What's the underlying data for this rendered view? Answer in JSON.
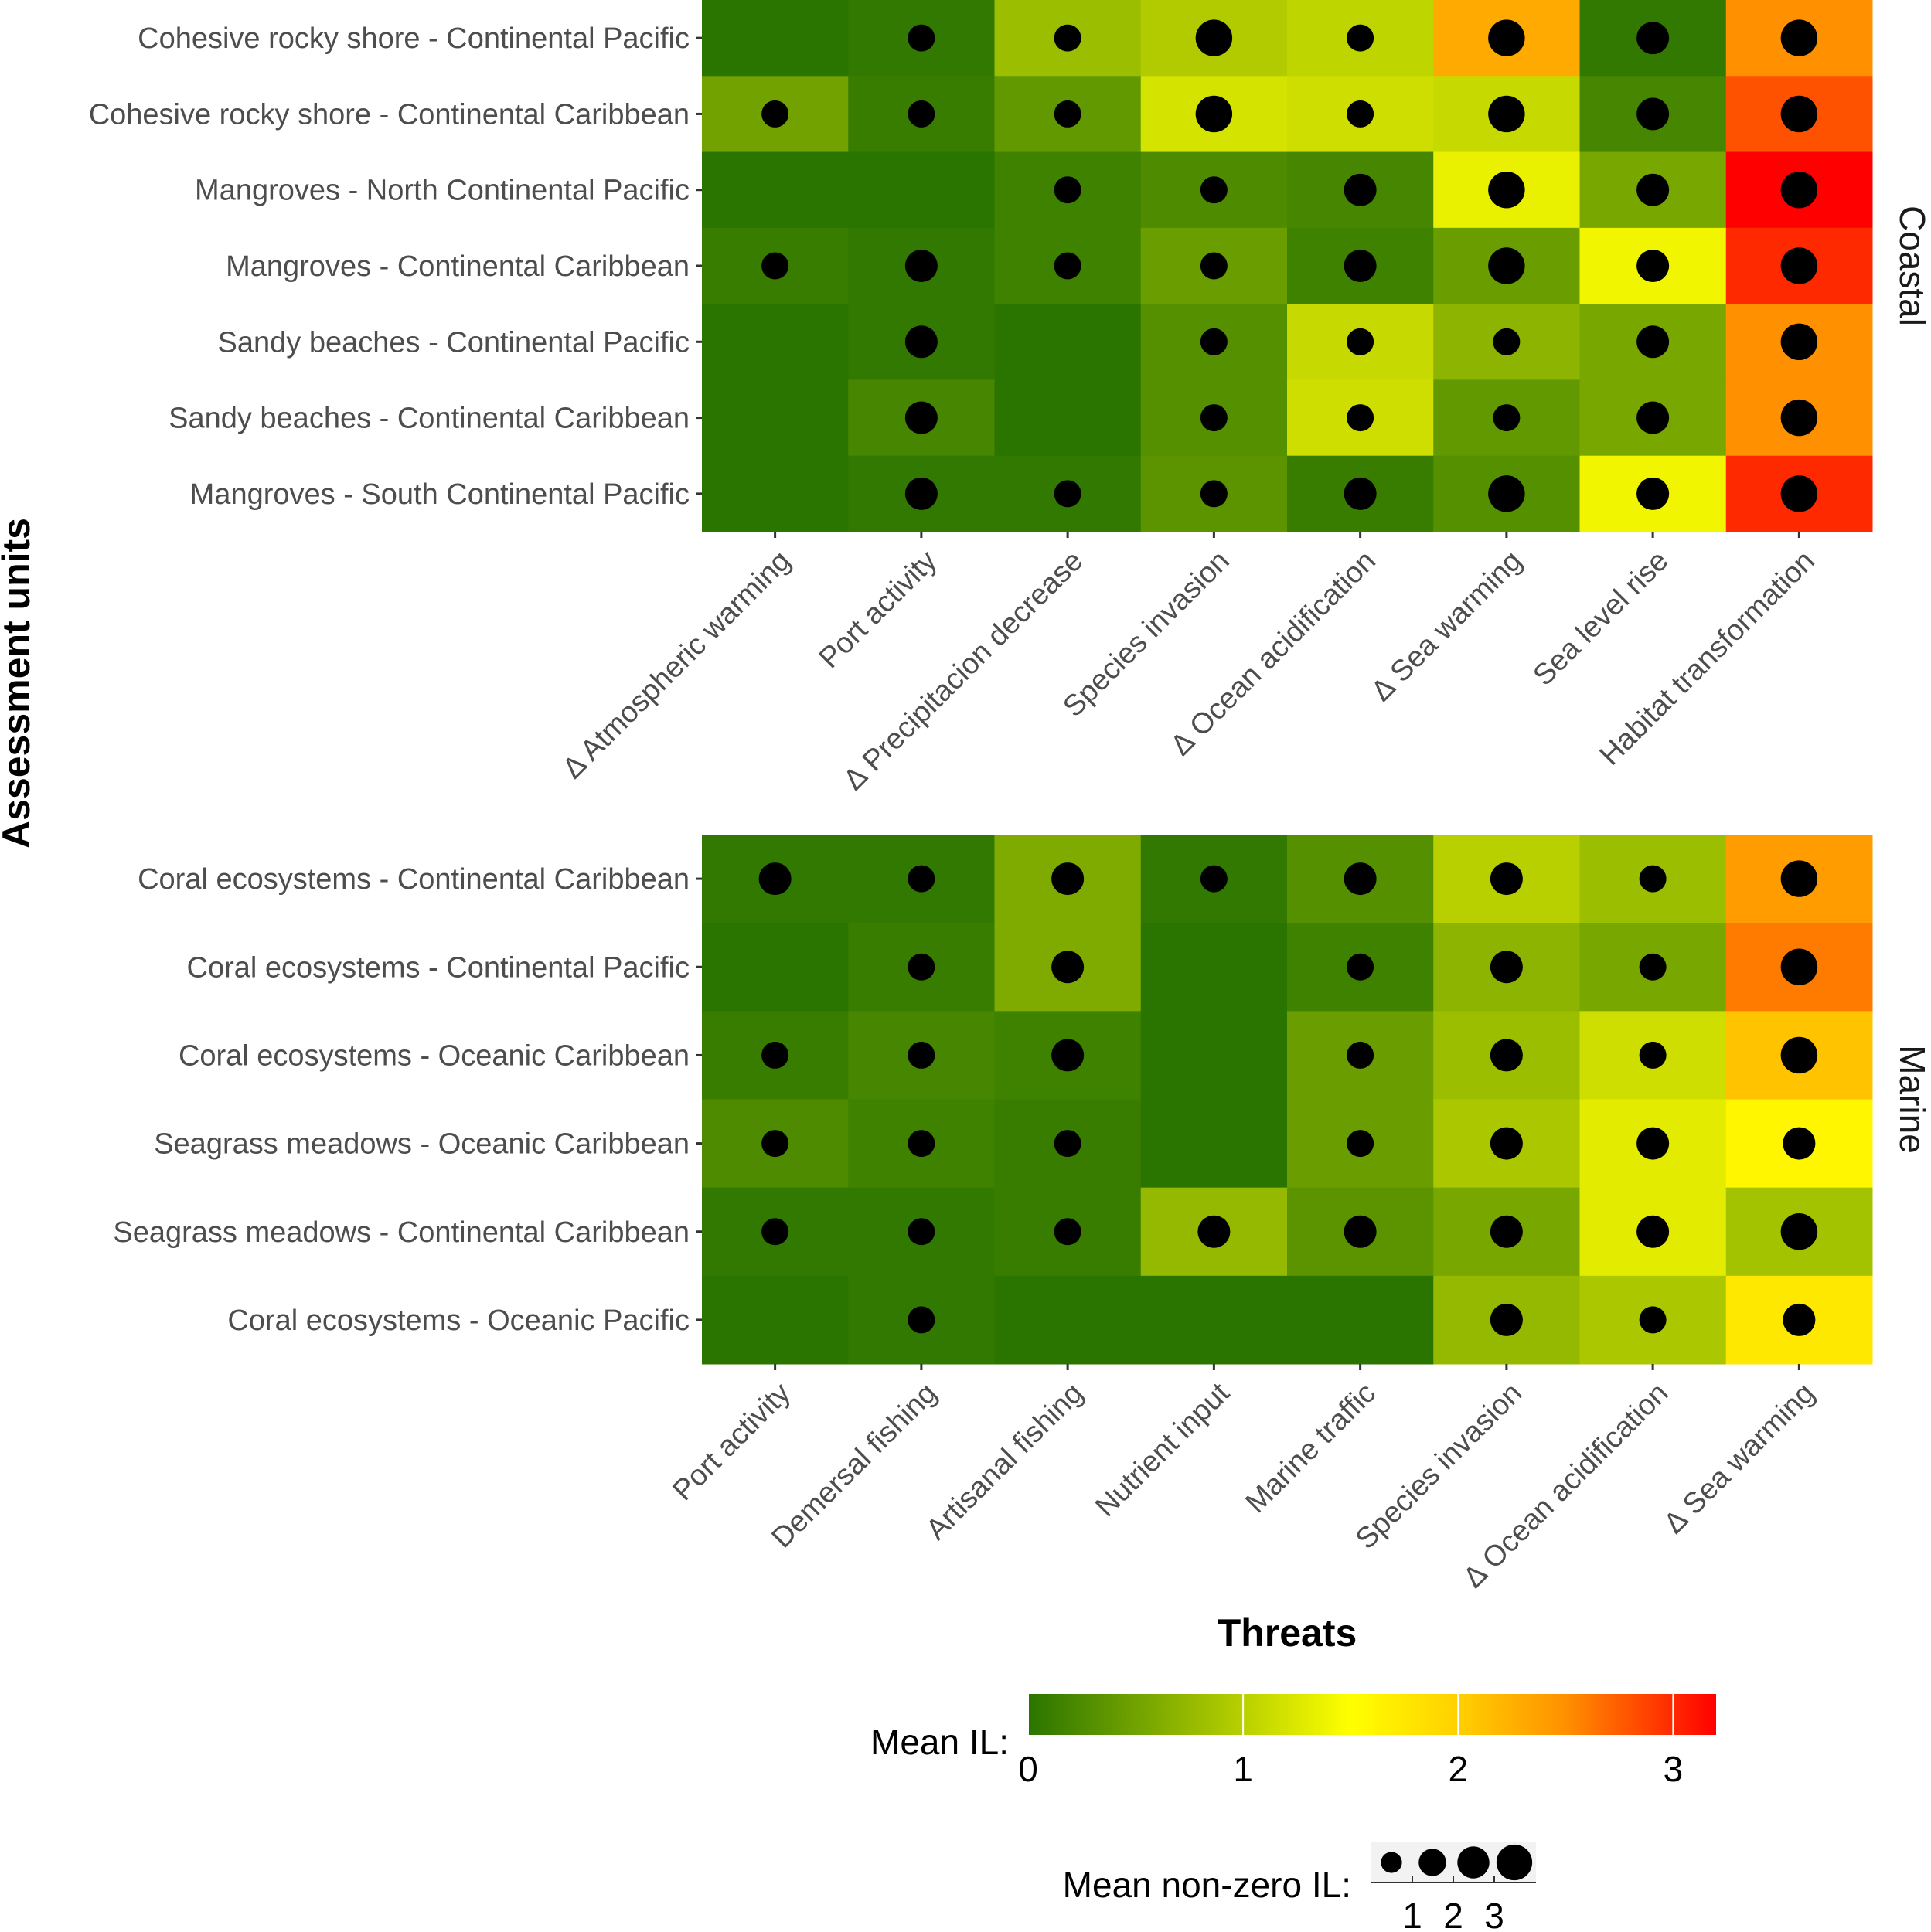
{
  "chart_data": {
    "type": "heatmap",
    "xlabel": "Threats",
    "ylabel": "Assessment units",
    "panels": [
      {
        "name": "Coastal",
        "rows": [
          "Cohesive rocky shore - Continental Pacific",
          "Cohesive rocky shore - Continental Caribbean",
          "Mangroves - North Continental Pacific",
          "Mangroves - Continental Caribbean",
          "Sandy beaches - Continental Pacific",
          "Sandy beaches - Continental Caribbean",
          "Mangroves - South Continental Pacific"
        ],
        "columns": [
          "∆ Atmospheric warming",
          "Port activity",
          "∆ Precipitacion decrease",
          "Species invasion",
          "∆ Ocean acidification",
          "∆ Sea warming",
          "Sea level rise",
          "Habitat transformation"
        ],
        "mean_il": [
          [
            0,
            0.05,
            0.8,
            0.95,
            1.05,
            2.3,
            0.05,
            2.5
          ],
          [
            0.5,
            0.1,
            0.4,
            1.2,
            1.15,
            1.1,
            0.2,
            2.8
          ],
          [
            0,
            0,
            0.15,
            0.25,
            0.2,
            1.35,
            0.55,
            3.2
          ],
          [
            0.1,
            0.05,
            0.15,
            0.45,
            0.15,
            0.45,
            1.4,
            3.0
          ],
          [
            0,
            0.05,
            0,
            0.3,
            1.1,
            0.7,
            0.55,
            2.5
          ],
          [
            0,
            0.2,
            0,
            0.3,
            1.15,
            0.4,
            0.55,
            2.5
          ],
          [
            0,
            0.05,
            0.05,
            0.35,
            0.1,
            0.3,
            1.4,
            3.0
          ]
        ],
        "mean_nonzero_il": [
          [
            null,
            1,
            1,
            3,
            1,
            3,
            2,
            3
          ],
          [
            1,
            1,
            1,
            3,
            1,
            3,
            2,
            3
          ],
          [
            null,
            null,
            1,
            1,
            2,
            3,
            2,
            3
          ],
          [
            1,
            2,
            1,
            1,
            2,
            3,
            2,
            3
          ],
          [
            null,
            2,
            null,
            1,
            1,
            1,
            2,
            3
          ],
          [
            null,
            2,
            null,
            1,
            1,
            1,
            2,
            3
          ],
          [
            null,
            2,
            1,
            1,
            2,
            3,
            2,
            3
          ]
        ]
      },
      {
        "name": "Marine",
        "rows": [
          "Coral ecosystems - Continental Caribbean",
          "Coral ecosystems - Continental Pacific",
          "Coral ecosystems - Oceanic Caribbean",
          "Seagrass meadows - Oceanic Caribbean",
          "Seagrass meadows - Continental Caribbean",
          "Coral ecosystems - Oceanic Pacific"
        ],
        "columns": [
          "Port activity",
          "Demersal fishing",
          "Artisanal fishing",
          "Nutrient input",
          "Marine traffic",
          "Species invasion",
          "∆ Ocean acidification",
          "∆ Sea warming"
        ],
        "mean_il": [
          [
            0.05,
            0.05,
            0.6,
            0.05,
            0.3,
            1.0,
            0.8,
            2.4
          ],
          [
            0,
            0.1,
            0.6,
            0,
            0.15,
            0.7,
            0.55,
            2.6
          ],
          [
            0.1,
            0.2,
            0.15,
            0,
            0.45,
            0.8,
            1.15,
            2.1
          ],
          [
            0.25,
            0.15,
            0.1,
            0,
            0.45,
            0.9,
            1.3,
            1.6
          ],
          [
            0.05,
            0.05,
            0.1,
            0.75,
            0.35,
            0.55,
            1.3,
            0.85
          ],
          [
            0,
            0.05,
            0,
            0,
            0,
            0.75,
            0.9,
            1.75
          ]
        ],
        "mean_nonzero_il": [
          [
            2,
            1,
            2,
            1,
            2,
            2,
            1,
            3
          ],
          [
            null,
            1,
            2,
            null,
            1,
            2,
            1,
            3
          ],
          [
            1,
            1,
            2,
            null,
            1,
            2,
            1,
            3
          ],
          [
            1,
            1,
            1,
            null,
            1,
            2,
            2,
            2
          ],
          [
            1,
            1,
            1,
            2,
            2,
            2,
            2,
            3
          ],
          [
            null,
            1,
            null,
            null,
            null,
            2,
            1,
            2
          ]
        ]
      }
    ],
    "color_legend": {
      "title": "Mean IL:",
      "ticks": [
        0,
        1,
        2,
        3
      ],
      "range": [
        0,
        3.2
      ],
      "stops": [
        [
          0,
          "#2a7400"
        ],
        [
          1,
          "#b8d000"
        ],
        [
          1.5,
          "#ffff00"
        ],
        [
          2,
          "#ffd000"
        ],
        [
          2.5,
          "#ff9000"
        ],
        [
          3.2,
          "#ff0000"
        ]
      ]
    },
    "size_legend": {
      "title": "Mean non-zero IL:",
      "ticks": [
        "1",
        "2",
        "3"
      ]
    }
  }
}
